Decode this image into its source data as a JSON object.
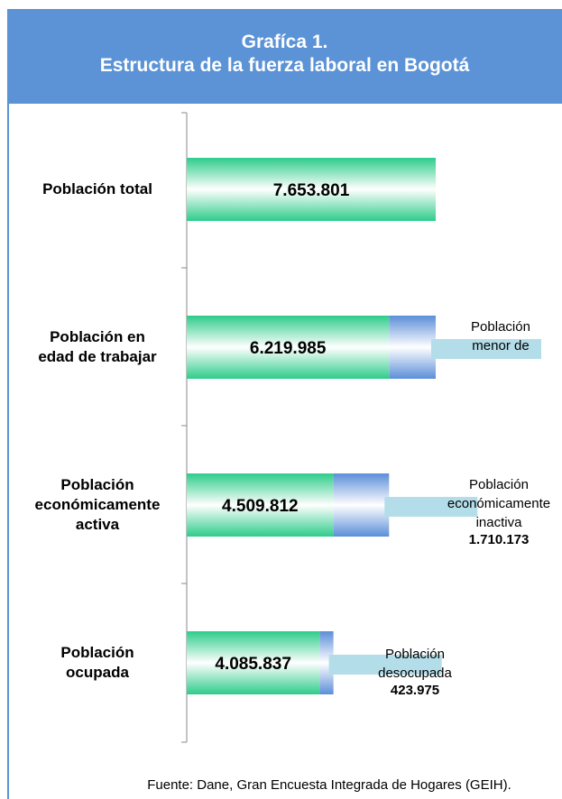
{
  "chart_data": {
    "type": "stacked-barh",
    "title": "Grafíca 1.\nEstructura de la fuerza laboral en Bogotá",
    "categories": [
      "Población total",
      "Población en\nedad de trabajar",
      "Población\neconómicamente\nactiva",
      "Población\nocupada"
    ],
    "xlim": [
      0,
      7653801
    ],
    "series": [
      {
        "color": "#2ecc8a",
        "values": [
          7653801,
          6219985,
          4509812,
          4085837
        ],
        "value_labels": [
          "7.653.801",
          "6.219.985",
          "4.509.812",
          "4.085.837"
        ]
      },
      {
        "color": "#5b8ed8",
        "values": [
          null,
          1433816,
          1710173,
          423975
        ],
        "value_labels": [
          null,
          null,
          "1.710.173",
          "423.975"
        ],
        "notes": [
          null,
          "Población\nmenor de",
          "Población\neconómicamente\ninactiva",
          "Población\ndesocupada"
        ]
      }
    ],
    "source": "Fuente: Dane, Gran Encuesta Integrada de Hogares (GEIH)."
  }
}
